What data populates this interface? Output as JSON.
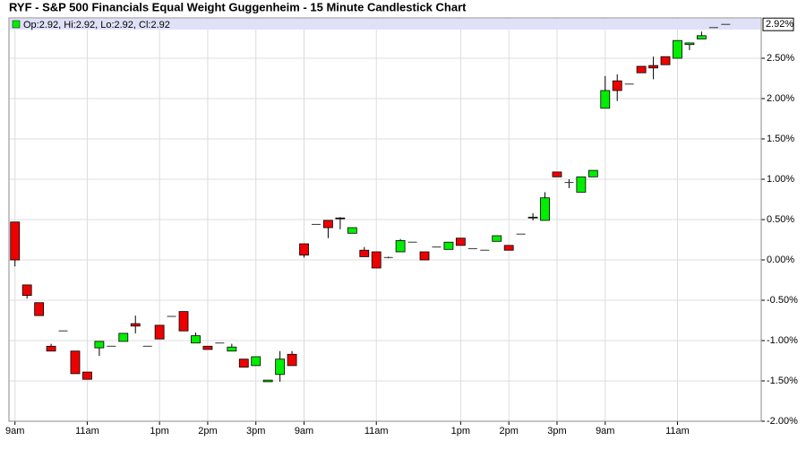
{
  "chart_data": {
    "type": "candlestick",
    "title": "RYF - S&P 500 Financials Equal Weight Guggenheim - 15 Minute Candlestick Chart",
    "legend_text": "Op:2.92, Hi:2.92, Lo:2.92, Cl:2.92",
    "last_label": {
      "value": 2.92,
      "label": "2.92%"
    },
    "up_color": "#00ee00",
    "down_color": "#ee0000",
    "grid": true,
    "ylim": [
      -2,
      3
    ],
    "yticks": [
      {
        "value": -2,
        "label": "-2.00%"
      },
      {
        "value": -1.5,
        "label": "-1.50%"
      },
      {
        "value": -1,
        "label": "-1.00%"
      },
      {
        "value": -0.5,
        "label": "-0.50%"
      },
      {
        "value": 0,
        "label": "0.00%"
      },
      {
        "value": 0.5,
        "label": "0.50%"
      },
      {
        "value": 1,
        "label": "1.00%"
      },
      {
        "value": 1.5,
        "label": "1.50%"
      },
      {
        "value": 2,
        "label": "2.00%"
      },
      {
        "value": 2.5,
        "label": "2.50%"
      }
    ],
    "categories": [
      "9am",
      null,
      null,
      null,
      null,
      null,
      "11am",
      null,
      null,
      null,
      null,
      null,
      "1pm",
      null,
      null,
      null,
      "2pm",
      null,
      null,
      null,
      "3pm",
      null,
      null,
      null,
      "9am",
      null,
      null,
      null,
      null,
      null,
      "11am",
      null,
      null,
      null,
      null,
      null,
      null,
      "1pm",
      null,
      null,
      null,
      "2pm",
      null,
      null,
      null,
      "3pm",
      null,
      null,
      null,
      "9am",
      null,
      null,
      null,
      null,
      null,
      "11am",
      null,
      null,
      null,
      null
    ],
    "open": [
      0.47,
      -0.31,
      -0.53,
      -1.07,
      -0.88,
      -1.13,
      -1.39,
      -1.09,
      -1.07,
      -1.01,
      -0.79,
      -1.07,
      -0.81,
      -0.7,
      -0.64,
      -1.03,
      -1.07,
      -1.03,
      -1.13,
      -1.23,
      -1.31,
      -1.51,
      -1.42,
      -1.17,
      0.2,
      0.44,
      0.49,
      0.52,
      0.33,
      0.12,
      0.1,
      0.03,
      0.1,
      0.22,
      0.1,
      0.16,
      0.13,
      0.27,
      0.14,
      0.12,
      0.23,
      0.18,
      0.32,
      0.52,
      0.49,
      1.09,
      0.96,
      0.84,
      1.03,
      1.88,
      2.22,
      2.18,
      2.4,
      2.41,
      2.52,
      2.5,
      2.67,
      2.74,
      2.88,
      2.92
    ],
    "high": [
      0.47,
      -0.31,
      -0.53,
      -1.04,
      -0.88,
      -1.13,
      -1.39,
      -1.01,
      -1.07,
      -0.91,
      -0.69,
      -1.07,
      -0.81,
      -0.7,
      -0.64,
      -0.9,
      -1.07,
      -1.03,
      -1.04,
      -1.23,
      -1.2,
      -1.49,
      -1.13,
      -1.13,
      0.2,
      0.44,
      0.49,
      0.53,
      0.4,
      0.16,
      0.1,
      0.04,
      0.26,
      0.22,
      0.1,
      0.16,
      0.22,
      0.27,
      0.14,
      0.12,
      0.3,
      0.18,
      0.32,
      0.58,
      0.84,
      1.09,
      1.0,
      1.03,
      1.11,
      2.28,
      2.3,
      2.18,
      2.4,
      2.52,
      2.52,
      2.72,
      2.69,
      2.83,
      2.88,
      2.92
    ],
    "low": [
      -0.08,
      -0.48,
      -0.69,
      -1.13,
      -0.88,
      -1.41,
      -1.48,
      -1.19,
      -1.07,
      -1.01,
      -0.91,
      -1.07,
      -0.98,
      -0.7,
      -0.88,
      -1.03,
      -1.11,
      -1.03,
      -1.13,
      -1.33,
      -1.31,
      -1.51,
      -1.51,
      -1.31,
      0.03,
      0.44,
      0.27,
      0.38,
      0.33,
      0.04,
      -0.1,
      0.02,
      0.1,
      0.22,
      0.0,
      0.16,
      0.13,
      0.18,
      0.14,
      0.12,
      0.23,
      0.12,
      0.32,
      0.49,
      0.49,
      1.03,
      0.89,
      0.84,
      1.03,
      1.88,
      1.97,
      2.18,
      2.32,
      2.24,
      2.42,
      2.5,
      2.6,
      2.74,
      2.88,
      2.92
    ],
    "close": [
      0.0,
      -0.44,
      -0.69,
      -1.13,
      -0.88,
      -1.41,
      -1.48,
      -1.01,
      -1.07,
      -0.91,
      -0.82,
      -1.07,
      -0.98,
      -0.7,
      -0.88,
      -0.94,
      -1.11,
      -1.03,
      -1.08,
      -1.33,
      -1.2,
      -1.49,
      -1.23,
      -1.31,
      0.06,
      0.44,
      0.4,
      0.51,
      0.4,
      0.04,
      -0.1,
      0.03,
      0.24,
      0.22,
      0.0,
      0.16,
      0.22,
      0.18,
      0.14,
      0.12,
      0.3,
      0.12,
      0.32,
      0.53,
      0.77,
      1.03,
      0.96,
      1.03,
      1.11,
      2.1,
      2.1,
      2.18,
      2.32,
      2.38,
      2.42,
      2.72,
      2.69,
      2.78,
      2.88,
      2.92
    ]
  }
}
